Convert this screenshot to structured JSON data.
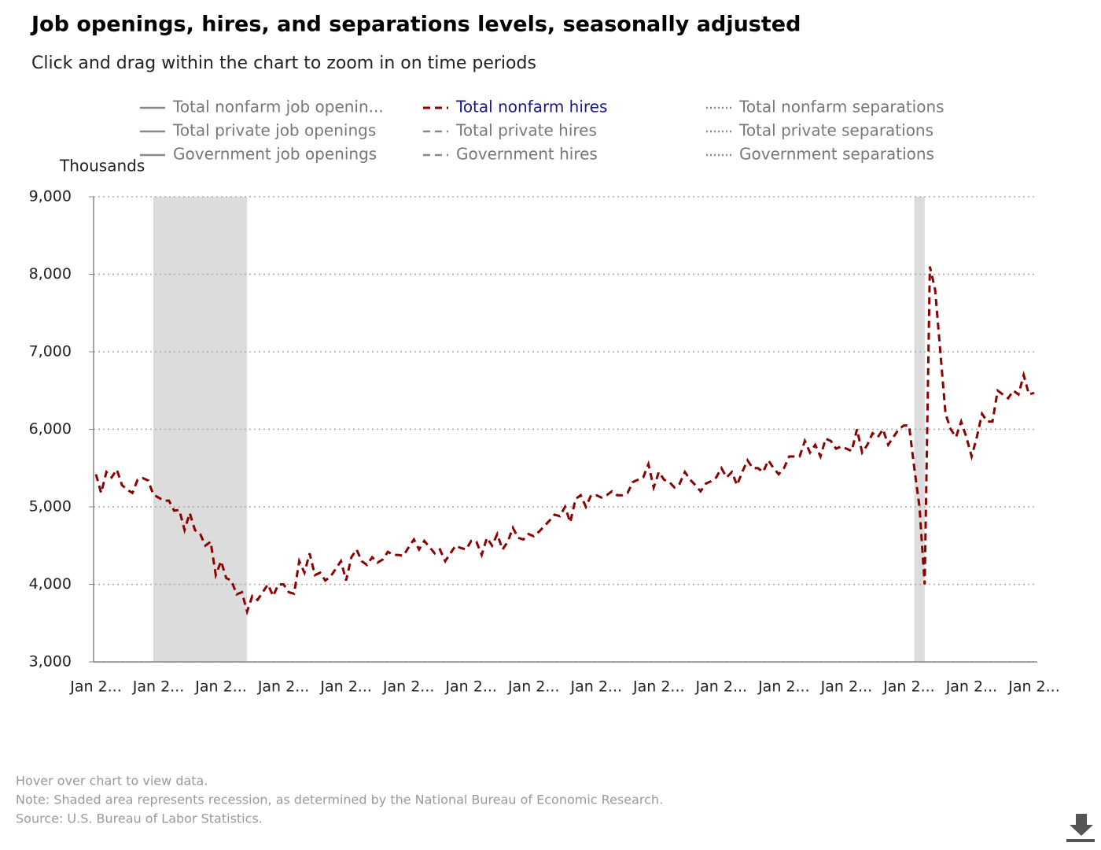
{
  "chart_data": {
    "type": "line",
    "title": "Job openings, hires, and separations levels, seasonally adjusted",
    "subtitle": "Click and drag within the chart to zoom in on time periods",
    "ylabel": "Thousands",
    "notes": [
      "Hover over chart to view data.",
      "Note: Shaded area represents recession, as determined by the National Bureau of Economic Research.",
      "Source: U.S. Bureau of Labor Statistics."
    ],
    "ylim": [
      3000,
      9000
    ],
    "yticks": [
      {
        "value": 3000,
        "label": "3,000"
      },
      {
        "value": 4000,
        "label": "4,000"
      },
      {
        "value": 5000,
        "label": "5,000"
      },
      {
        "value": 6000,
        "label": "6,000"
      },
      {
        "value": 7000,
        "label": "7,000"
      },
      {
        "value": 8000,
        "label": "8,000"
      },
      {
        "value": 9000,
        "label": "9,000"
      }
    ],
    "grid": true,
    "recessions": [
      [
        11,
        29
      ],
      [
        157,
        159
      ]
    ],
    "legend_items": [
      {
        "name": "Total nonfarm job openin...",
        "style": "solid"
      },
      {
        "name": "Total private job openings",
        "style": "solid"
      },
      {
        "name": "Government job openings",
        "style": "solid"
      },
      {
        "name": "Total nonfarm hires",
        "style": "dashed",
        "active": true
      },
      {
        "name": "Total private hires",
        "style": "dashed"
      },
      {
        "name": "Government hires",
        "style": "dashed"
      },
      {
        "name": "Total nonfarm separations",
        "style": "dotted"
      },
      {
        "name": "Total private separations",
        "style": "dotted"
      },
      {
        "name": "Government separations",
        "style": "dotted"
      }
    ],
    "categories": [
      "Jan 2...",
      null,
      null,
      null,
      null,
      null,
      null,
      null,
      null,
      null,
      null,
      null,
      "Jan 2...",
      null,
      null,
      null,
      null,
      null,
      null,
      null,
      null,
      null,
      null,
      null,
      "Jan 2...",
      null,
      null,
      null,
      null,
      null,
      null,
      null,
      null,
      null,
      null,
      null,
      "Jan 2...",
      null,
      null,
      null,
      null,
      null,
      null,
      null,
      null,
      null,
      null,
      null,
      "Jan 2...",
      null,
      null,
      null,
      null,
      null,
      null,
      null,
      null,
      null,
      null,
      null,
      "Jan 2...",
      null,
      null,
      null,
      null,
      null,
      null,
      null,
      null,
      null,
      null,
      null,
      "Jan 2...",
      null,
      null,
      null,
      null,
      null,
      null,
      null,
      null,
      null,
      null,
      null,
      "Jan 2...",
      null,
      null,
      null,
      null,
      null,
      null,
      null,
      null,
      null,
      null,
      null,
      "Jan 2...",
      null,
      null,
      null,
      null,
      null,
      null,
      null,
      null,
      null,
      null,
      null,
      "Jan 2...",
      null,
      null,
      null,
      null,
      null,
      null,
      null,
      null,
      null,
      null,
      null,
      "Jan 2...",
      null,
      null,
      null,
      null,
      null,
      null,
      null,
      null,
      null,
      null,
      null,
      "Jan 2...",
      null,
      null,
      null,
      null,
      null,
      null,
      null,
      null,
      null,
      null,
      null,
      "Jan 2...",
      null,
      null,
      null,
      null,
      null,
      null,
      null,
      null,
      null,
      null,
      null,
      "Jan 2...",
      null,
      null,
      null,
      null,
      null,
      null,
      null,
      null,
      null,
      null,
      null,
      "Jan 2...",
      null,
      null,
      null,
      null,
      null,
      null,
      null,
      null,
      null,
      null,
      null,
      "Jan 2..."
    ],
    "series": [
      {
        "name": "Total nonfarm hires",
        "color": "#8b0000",
        "style": "dashed",
        "values": [
          5420,
          5180,
          5450,
          5380,
          5480,
          5280,
          5220,
          5180,
          5350,
          5370,
          5340,
          5160,
          5120,
          5080,
          5080,
          4950,
          4960,
          4700,
          4920,
          4700,
          4650,
          4500,
          4550,
          4120,
          4300,
          4080,
          4050,
          3870,
          3900,
          3650,
          3850,
          3800,
          3900,
          4000,
          3850,
          4000,
          4000,
          3900,
          3880,
          4300,
          4150,
          4400,
          4120,
          4150,
          4050,
          4100,
          4200,
          4300,
          4050,
          4350,
          4450,
          4300,
          4250,
          4350,
          4280,
          4320,
          4420,
          4380,
          4380,
          4370,
          4480,
          4580,
          4450,
          4560,
          4480,
          4400,
          4450,
          4300,
          4400,
          4500,
          4470,
          4450,
          4560,
          4550,
          4380,
          4600,
          4500,
          4650,
          4450,
          4550,
          4730,
          4600,
          4580,
          4650,
          4620,
          4680,
          4750,
          4820,
          4900,
          4880,
          5000,
          4800,
          5100,
          5150,
          5000,
          5150,
          5150,
          5120,
          5150,
          5200,
          5150,
          5150,
          5180,
          5320,
          5350,
          5380,
          5550,
          5250,
          5450,
          5350,
          5320,
          5250,
          5300,
          5450,
          5350,
          5280,
          5200,
          5300,
          5330,
          5380,
          5500,
          5380,
          5450,
          5280,
          5450,
          5600,
          5500,
          5500,
          5450,
          5600,
          5500,
          5420,
          5500,
          5650,
          5650,
          5650,
          5850,
          5700,
          5800,
          5650,
          5880,
          5850,
          5750,
          5780,
          5750,
          5720,
          6000,
          5700,
          5800,
          5950,
          5900,
          6000,
          5800,
          5900,
          6000,
          6050,
          6050,
          5500,
          5000,
          4000,
          8100,
          7800,
          7000,
          6200,
          6000,
          5900,
          6100,
          5900,
          5650,
          5900,
          6200,
          6100,
          6100,
          6500,
          6450,
          6400,
          6500,
          6450,
          6700,
          6450,
          6470
        ]
      }
    ]
  }
}
